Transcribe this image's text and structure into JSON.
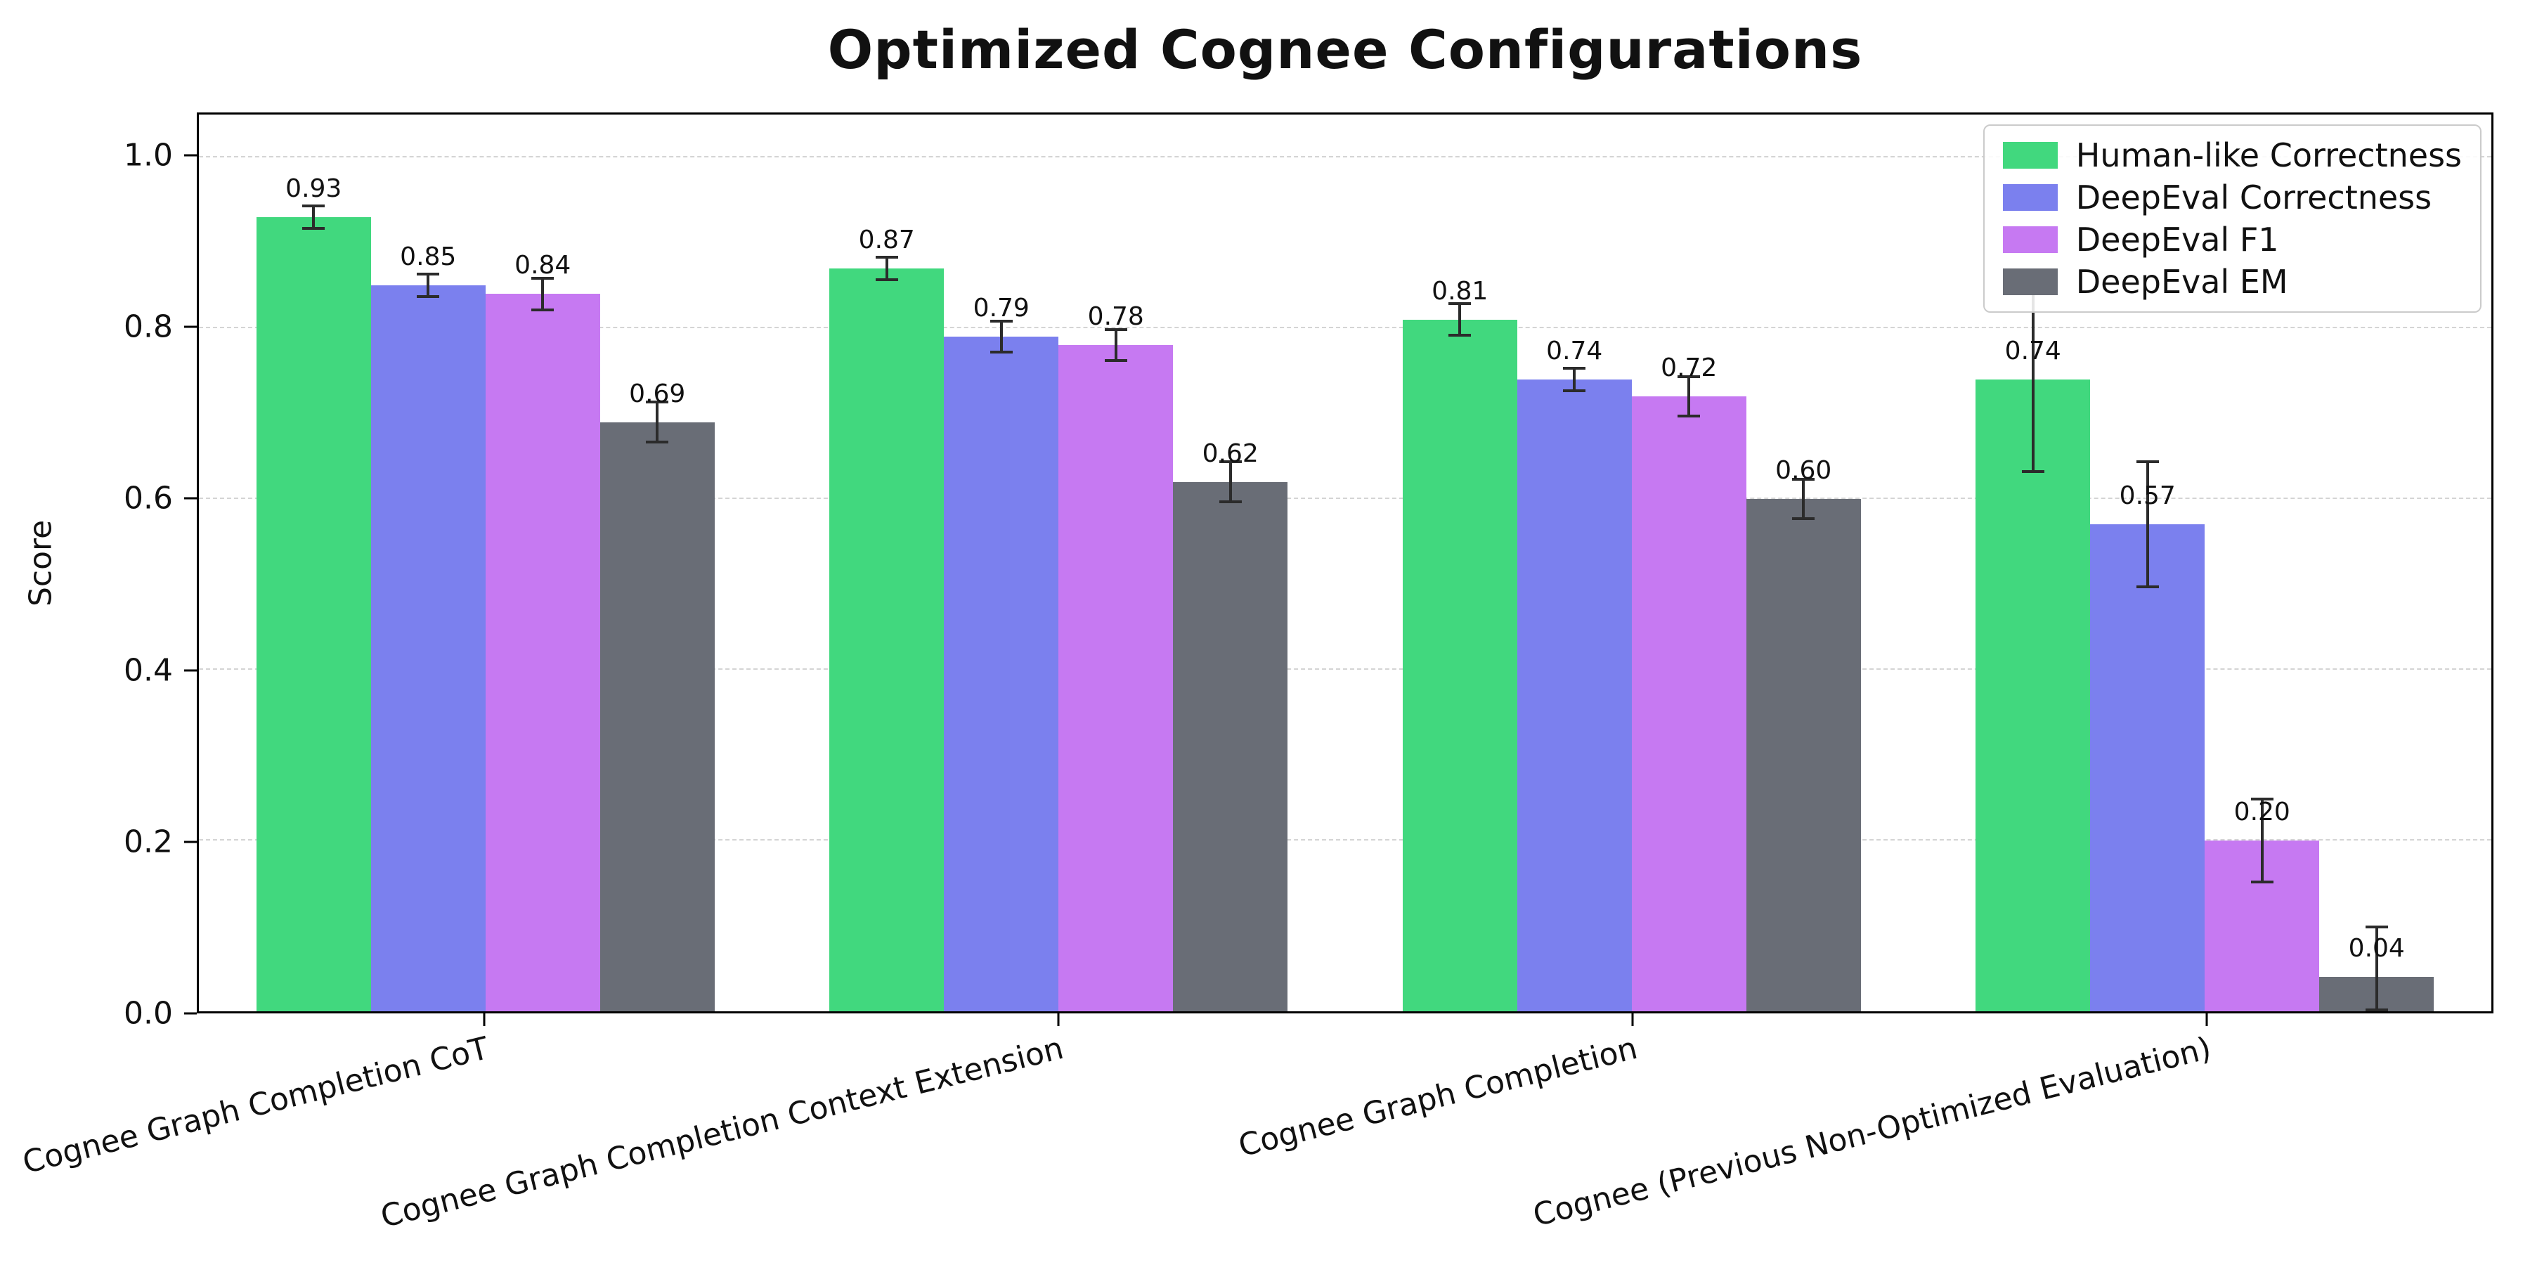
{
  "chart_data": {
    "type": "bar",
    "title": "Optimized Cognee Configurations",
    "xlabel": "",
    "ylabel": "Score",
    "ylim": [
      0,
      1.05
    ],
    "yticks": [
      0.0,
      0.2,
      0.4,
      0.6,
      0.8,
      1.0
    ],
    "grid": "horizontal dashed",
    "legend_position": "upper right",
    "error_bar_color": "#2b2b2b",
    "categories": [
      "Cognee Graph Completion CoT",
      "Cognee Graph Completion Context Extension",
      "Cognee Graph Completion",
      "Cognee (Previous Non-Optimized Evaluation)"
    ],
    "series": [
      {
        "name": "Human-like Correctness",
        "color": "#41d87e",
        "values": [
          0.93,
          0.87,
          0.81,
          0.74
        ],
        "errors": [
          0.015,
          0.015,
          0.02,
          0.11
        ]
      },
      {
        "name": "DeepEval Correctness",
        "color": "#7b80ee",
        "values": [
          0.85,
          0.79,
          0.74,
          0.57
        ],
        "errors": [
          0.015,
          0.02,
          0.015,
          0.075
        ]
      },
      {
        "name": "DeepEval F1",
        "color": "#c679f2",
        "values": [
          0.84,
          0.78,
          0.72,
          0.2
        ],
        "errors": [
          0.02,
          0.02,
          0.025,
          0.05
        ]
      },
      {
        "name": "DeepEval EM",
        "color": "#696d76",
        "values": [
          0.69,
          0.62,
          0.6,
          0.04
        ],
        "errors": [
          0.025,
          0.025,
          0.025,
          0.06
        ]
      }
    ]
  }
}
